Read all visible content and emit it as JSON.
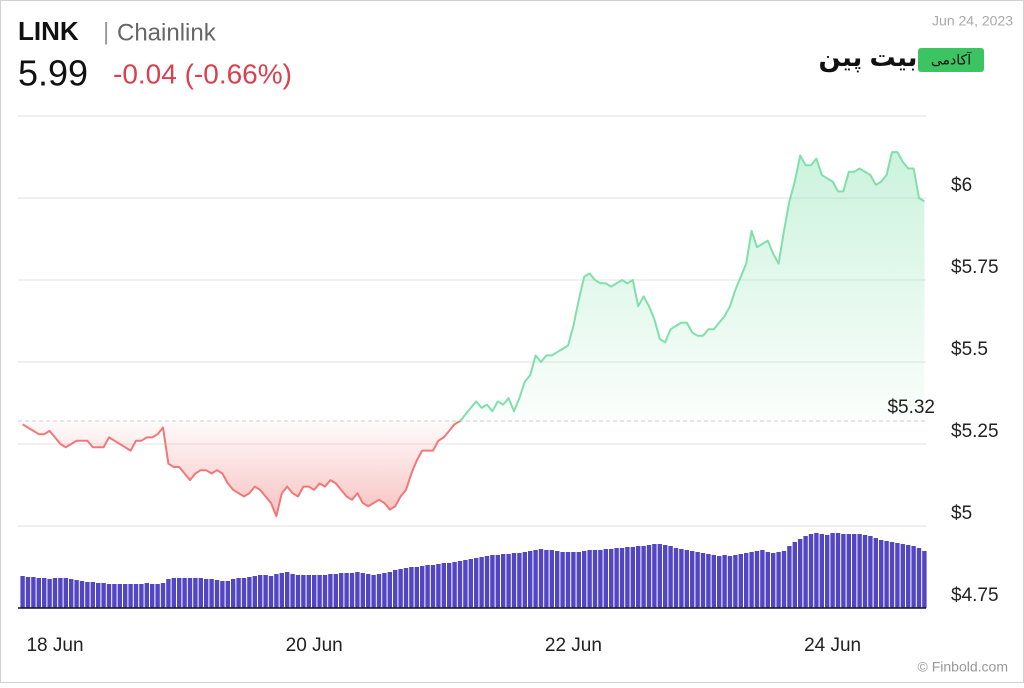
{
  "chart_data": {
    "type": "line",
    "title": "LINK",
    "subtitle": "Chainlink",
    "price": 5.99,
    "change_text": "-0.04 (-0.66%)",
    "date": "Jun 24, 2023",
    "logo": "بیت پین",
    "badge": "آکادمی",
    "source": "© Finbold.com",
    "line_color_up": "#7fe0aa",
    "line_color_down": "#f07878",
    "volume_color": "#5246c4",
    "ylim": [
      4.75,
      6.25
    ],
    "yticks": [
      {
        "value": 4.75,
        "label": "$4.75"
      },
      {
        "value": 5,
        "label": "$5"
      },
      {
        "value": 5.25,
        "label": "$5.25"
      },
      {
        "value": 5.5,
        "label": "$5.5"
      },
      {
        "value": 5.75,
        "label": "$5.75"
      },
      {
        "value": 6,
        "label": "$6"
      }
    ],
    "baseline": {
      "value": 5.32,
      "label": "$5.32"
    },
    "grid": true,
    "categories": [
      null,
      null,
      null,
      null,
      null,
      null,
      "18 Jun",
      null,
      null,
      null,
      null,
      null,
      null,
      null,
      null,
      null,
      null,
      null,
      null,
      null,
      null,
      null,
      null,
      null,
      null,
      null,
      null,
      null,
      null,
      null,
      null,
      null,
      null,
      null,
      null,
      null,
      null,
      null,
      null,
      null,
      null,
      null,
      null,
      null,
      null,
      null,
      null,
      null,
      null,
      null,
      null,
      null,
      null,
      null,
      "20 Jun",
      null,
      null,
      null,
      null,
      null,
      null,
      null,
      null,
      null,
      null,
      null,
      null,
      null,
      null,
      null,
      null,
      null,
      null,
      null,
      null,
      null,
      null,
      null,
      null,
      null,
      null,
      null,
      null,
      null,
      null,
      null,
      null,
      null,
      null,
      null,
      null,
      null,
      null,
      null,
      null,
      null,
      null,
      null,
      null,
      null,
      null,
      null,
      "22 Jun",
      null,
      null,
      null,
      null,
      null,
      null,
      null,
      null,
      null,
      null,
      null,
      null,
      null,
      null,
      null,
      null,
      null,
      null,
      null,
      null,
      null,
      null,
      null,
      null,
      null,
      null,
      null,
      null,
      null,
      null,
      null,
      null,
      null,
      null,
      null,
      null,
      null,
      null,
      null,
      null,
      null,
      null,
      null,
      null,
      null,
      null,
      null,
      "24 Jun",
      null,
      null,
      null,
      null,
      null,
      null,
      null,
      null,
      null,
      null,
      null,
      null,
      null,
      null,
      null,
      null,
      null
    ],
    "values": [
      5.31,
      5.3,
      5.29,
      5.28,
      5.28,
      5.29,
      5.27,
      5.25,
      5.24,
      5.25,
      5.26,
      5.26,
      5.26,
      5.24,
      5.24,
      5.24,
      5.27,
      5.26,
      5.25,
      5.24,
      5.23,
      5.26,
      5.26,
      5.27,
      5.27,
      5.28,
      5.3,
      5.19,
      5.18,
      5.18,
      5.16,
      5.14,
      5.16,
      5.17,
      5.17,
      5.16,
      5.17,
      5.16,
      5.13,
      5.11,
      5.1,
      5.09,
      5.1,
      5.12,
      5.11,
      5.09,
      5.07,
      5.03,
      5.1,
      5.12,
      5.1,
      5.09,
      5.12,
      5.12,
      5.11,
      5.13,
      5.12,
      5.14,
      5.13,
      5.11,
      5.09,
      5.08,
      5.1,
      5.07,
      5.06,
      5.07,
      5.08,
      5.07,
      5.05,
      5.06,
      5.09,
      5.11,
      5.16,
      5.2,
      5.23,
      5.23,
      5.23,
      5.26,
      5.27,
      5.29,
      5.31,
      5.32,
      5.34,
      5.36,
      5.38,
      5.36,
      5.37,
      5.35,
      5.38,
      5.37,
      5.39,
      5.35,
      5.39,
      5.44,
      5.46,
      5.52,
      5.5,
      5.52,
      5.52,
      5.53,
      5.54,
      5.55,
      5.61,
      5.69,
      5.76,
      5.77,
      5.75,
      5.74,
      5.74,
      5.73,
      5.74,
      5.75,
      5.74,
      5.75,
      5.67,
      5.7,
      5.67,
      5.63,
      5.57,
      5.56,
      5.6,
      5.61,
      5.62,
      5.62,
      5.59,
      5.58,
      5.58,
      5.6,
      5.6,
      5.62,
      5.64,
      5.67,
      5.72,
      5.76,
      5.8,
      5.9,
      5.85,
      5.86,
      5.87,
      5.83,
      5.8,
      5.9,
      5.99,
      6.05,
      6.13,
      6.1,
      6.1,
      6.12,
      6.07,
      6.06,
      6.05,
      6.02,
      6.02,
      6.08,
      6.08,
      6.09,
      6.08,
      6.07,
      6.04,
      6.05,
      6.07,
      6.14,
      6.14,
      6.11,
      6.09,
      6.09,
      6.0,
      5.99
    ],
    "volume": [
      32,
      31,
      31,
      30,
      30,
      29,
      30,
      30,
      30,
      29,
      28,
      27,
      26,
      26,
      25,
      25,
      24,
      24,
      24,
      24,
      24,
      24,
      24,
      25,
      24,
      24,
      25,
      29,
      30,
      30,
      30,
      30,
      30,
      30,
      29,
      29,
      28,
      27,
      27,
      29,
      30,
      30,
      31,
      32,
      33,
      33,
      32,
      34,
      35,
      36,
      34,
      33,
      33,
      33,
      33,
      33,
      33,
      34,
      34,
      35,
      35,
      35,
      36,
      35,
      34,
      33,
      34,
      35,
      36,
      38,
      39,
      40,
      41,
      41,
      42,
      43,
      43,
      44,
      45,
      45,
      46,
      47,
      48,
      49,
      50,
      51,
      52,
      53,
      53,
      54,
      54,
      55,
      55,
      56,
      57,
      58,
      59,
      58,
      58,
      57,
      56,
      56,
      56,
      56,
      57,
      58,
      58,
      58,
      59,
      59,
      60,
      60,
      61,
      61,
      62,
      62,
      63,
      64,
      64,
      63,
      62,
      60,
      59,
      58,
      57,
      56,
      55,
      54,
      53,
      52,
      53,
      52,
      53,
      54,
      55,
      56,
      57,
      58,
      56,
      55,
      56,
      57,
      62,
      66,
      69,
      72,
      74,
      75,
      74,
      73,
      75,
      75,
      74,
      74,
      74,
      74,
      73,
      72,
      70,
      68,
      67,
      66,
      65,
      64,
      63,
      62,
      60,
      57
    ]
  }
}
